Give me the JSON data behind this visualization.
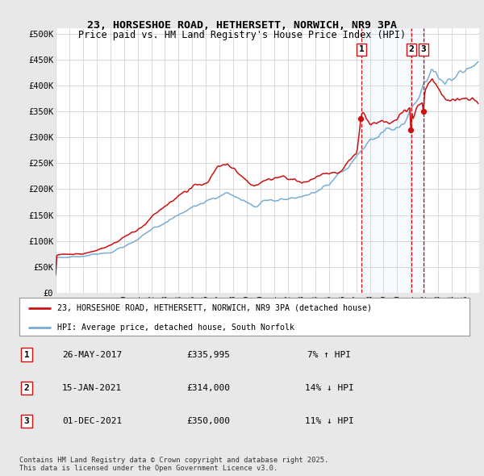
{
  "title_line1": "23, HORSESHOE ROAD, HETHERSETT, NORWICH, NR9 3PA",
  "title_line2": "Price paid vs. HM Land Registry's House Price Index (HPI)",
  "ylabel_ticks": [
    "£0",
    "£50K",
    "£100K",
    "£150K",
    "£200K",
    "£250K",
    "£300K",
    "£350K",
    "£400K",
    "£450K",
    "£500K"
  ],
  "ytick_values": [
    0,
    50000,
    100000,
    150000,
    200000,
    250000,
    300000,
    350000,
    400000,
    450000,
    500000
  ],
  "hpi_color": "#7aadd4",
  "price_color": "#cc1111",
  "background_color": "#e8e8e8",
  "plot_bg_color": "#ffffff",
  "shade_color": "#ddeeff",
  "legend_label_red": "23, HORSESHOE ROAD, HETHERSETT, NORWICH, NR9 3PA (detached house)",
  "legend_label_blue": "HPI: Average price, detached house, South Norfolk",
  "sale1_date": "26-MAY-2017",
  "sale1_price": "£335,995",
  "sale1_pct": "7% ↑ HPI",
  "sale1_year": 2017.37,
  "sale1_price_val": 335995,
  "sale2_date": "15-JAN-2021",
  "sale2_price": "£314,000",
  "sale2_pct": "14% ↓ HPI",
  "sale2_year": 2021.04,
  "sale2_price_val": 314000,
  "sale3_date": "01-DEC-2021",
  "sale3_price": "£350,000",
  "sale3_pct": "11% ↓ HPI",
  "sale3_year": 2021.92,
  "sale3_price_val": 350000,
  "footer": "Contains HM Land Registry data © Crown copyright and database right 2025.\nThis data is licensed under the Open Government Licence v3.0.",
  "xmin": 1995,
  "xmax": 2026,
  "ymin": 0,
  "ymax": 510000
}
